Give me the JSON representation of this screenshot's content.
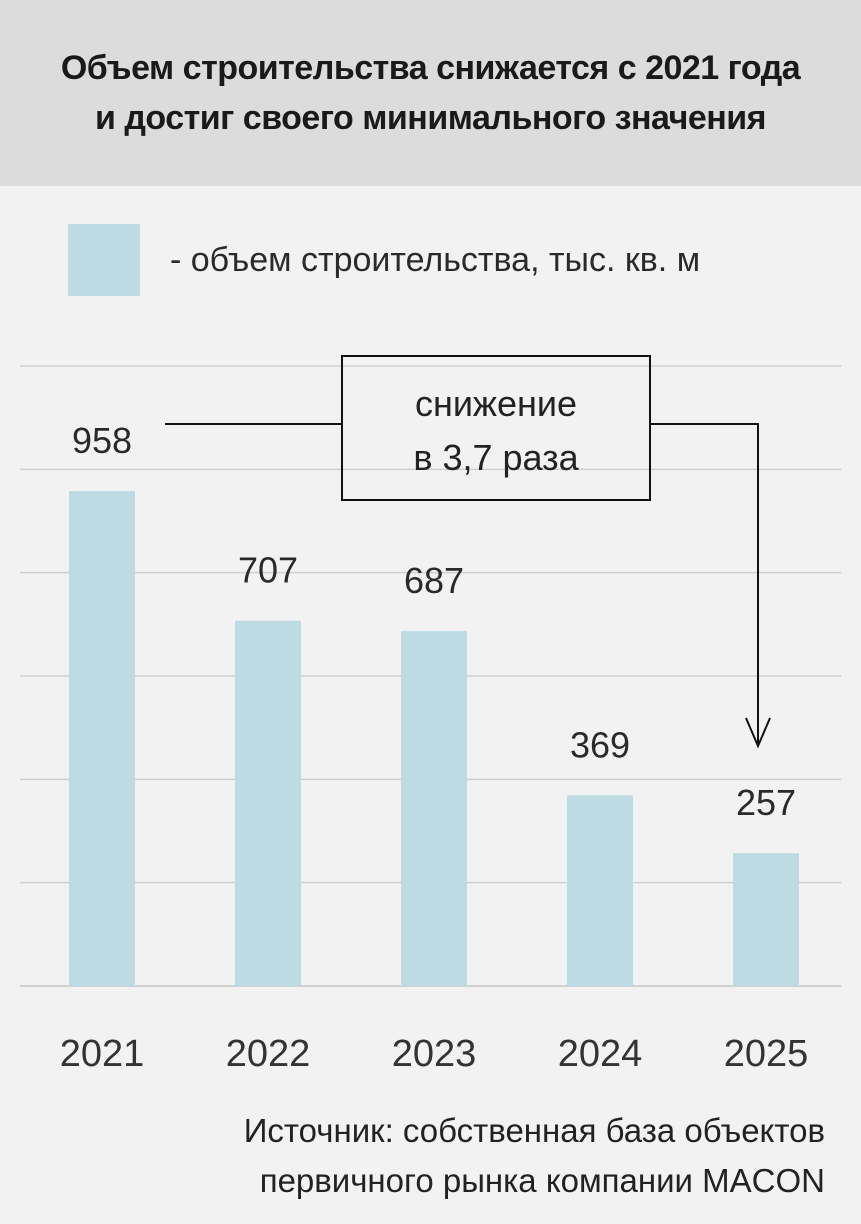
{
  "header": {
    "title_line1": "Объем строительства снижается с 2021 года",
    "title_line2": "и достиг своего минимального значения"
  },
  "legend": {
    "label": "- объем строительства, тыс. кв. м",
    "color": "#bddbe3"
  },
  "annotation": {
    "line1": "снижение",
    "line2": "в 3,7 раза"
  },
  "chart_data": {
    "type": "bar",
    "categories": [
      "2021",
      "2022",
      "2023",
      "2024",
      "2025"
    ],
    "series": [
      {
        "name": "- объем строительства, тыс. кв. м",
        "values": [
          958,
          707,
          687,
          369,
          257
        ]
      }
    ],
    "data_labels": [
      "958",
      "707",
      "687",
      "369",
      "257"
    ],
    "title": "Объем строительства снижается с 2021 года и достиг своего минимального значения",
    "xlabel": "",
    "ylabel": "",
    "ylim": [
      0,
      1200
    ],
    "grid": true,
    "legend_position": "top-left",
    "bar_color": "#bddbe3",
    "grid_color": "#cfcfcf"
  },
  "source": {
    "line1": "Источник: собственная база объектов",
    "line2": "первичного рынка компании MACON"
  }
}
